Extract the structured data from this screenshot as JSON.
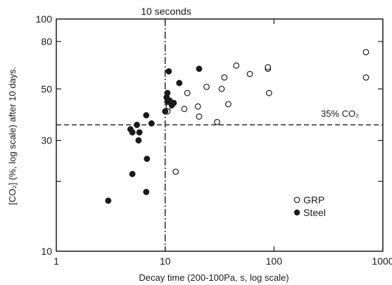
{
  "chart_data": {
    "type": "scatter",
    "title": "",
    "xlabel": "Decay time (200-100Pa, s, log scale)",
    "ylabel": "[CO₂] (%, log scale) after 10 days.",
    "xscale": "log",
    "yscale": "log",
    "xlim": [
      1,
      1000
    ],
    "ylim": [
      10,
      100
    ],
    "x_ticks": [
      1,
      10,
      100,
      1000
    ],
    "x_tick_labels": [
      "1",
      "10",
      "100",
      "1000"
    ],
    "y_ticks": [
      10,
      20,
      30,
      50,
      80,
      100
    ],
    "y_tick_labels": [
      "10",
      "",
      "30",
      "50",
      "80",
      "100"
    ],
    "grid": false,
    "legend_position": "bottom-right",
    "series": [
      {
        "name": "GRP",
        "marker": "open-circle",
        "points": [
          [
            10.5,
            40
          ],
          [
            10.8,
            42
          ],
          [
            12.5,
            22
          ],
          [
            15,
            41
          ],
          [
            16,
            48
          ],
          [
            20,
            42
          ],
          [
            20.5,
            38
          ],
          [
            24,
            51
          ],
          [
            30,
            36
          ],
          [
            33,
            50
          ],
          [
            35,
            56
          ],
          [
            38,
            43
          ],
          [
            45,
            63
          ],
          [
            60,
            58
          ],
          [
            88,
            61
          ],
          [
            88,
            62
          ],
          [
            90,
            48
          ],
          [
            700,
            56
          ],
          [
            700,
            72
          ]
        ]
      },
      {
        "name": "Steel",
        "marker": "filled-circle",
        "points": [
          [
            3,
            16.5
          ],
          [
            4.8,
            33.5
          ],
          [
            5,
            32.5
          ],
          [
            5,
            21.5
          ],
          [
            5.5,
            35
          ],
          [
            5.7,
            30
          ],
          [
            5.8,
            32.5
          ],
          [
            6.7,
            18
          ],
          [
            6.8,
            25
          ],
          [
            6.7,
            38.5
          ],
          [
            7.5,
            35.5
          ],
          [
            10,
            40
          ],
          [
            10.3,
            46
          ],
          [
            10.5,
            48
          ],
          [
            10.5,
            44
          ],
          [
            10.8,
            59.5
          ],
          [
            11,
            44.5
          ],
          [
            11.5,
            42.5
          ],
          [
            12,
            43.5
          ],
          [
            13.5,
            53
          ],
          [
            20.5,
            61
          ]
        ]
      }
    ],
    "reference_lines": [
      {
        "orientation": "horizontal",
        "value": 35,
        "label": "35% CO₂",
        "style": "dashed"
      },
      {
        "orientation": "vertical",
        "value": 10,
        "label": "10 seconds",
        "style": "dash-dot"
      }
    ]
  }
}
